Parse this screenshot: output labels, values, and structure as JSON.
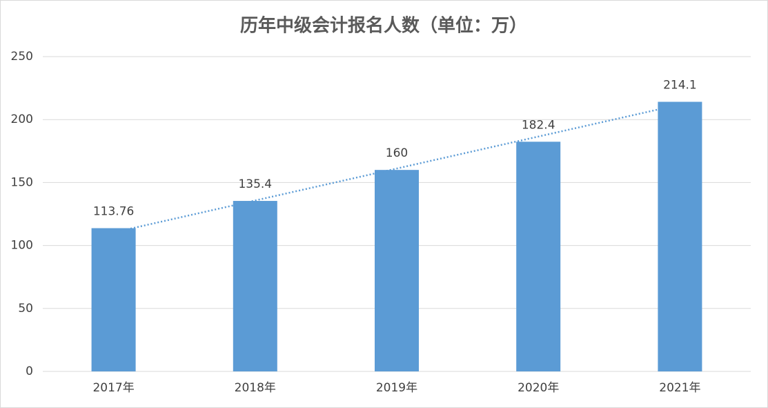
{
  "chart_data": {
    "type": "bar",
    "title": "历年中级会计报名人数（单位：万）",
    "categories": [
      "2017年",
      "2018年",
      "2019年",
      "2020年",
      "2021年"
    ],
    "values": [
      113.76,
      135.4,
      160,
      182.4,
      214.1
    ],
    "color": "#5b9bd5",
    "ylim": [
      0,
      250
    ],
    "yticks": [
      0,
      50,
      100,
      150,
      200,
      250
    ],
    "grid": true,
    "trendline": "linear",
    "trendline_color": "#5b9bd5"
  }
}
